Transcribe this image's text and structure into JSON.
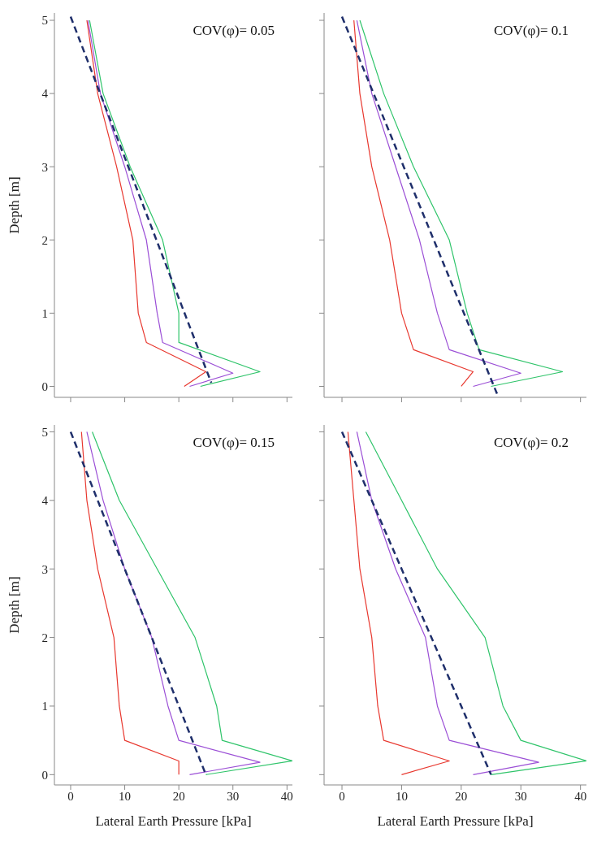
{
  "chart_data": [
    {
      "type": "line",
      "ylabel": "Depth [m]",
      "annotations": [
        "COV(φ)= 0.05"
      ],
      "xlim": [
        -3,
        41
      ],
      "ylim": [
        -0.15,
        5.1
      ],
      "xticks": [
        0,
        10,
        20,
        30,
        40
      ],
      "yticks": [
        0,
        1,
        2,
        3,
        4,
        5
      ],
      "tick_labels": "y",
      "marker": "none",
      "series": [
        {
          "color": "#e8382f",
          "x": [
            3,
            5,
            8.5,
            11.5,
            12.5,
            14,
            25,
            21
          ],
          "values": [
            5,
            4,
            3,
            2,
            1,
            0.6,
            0.2,
            0
          ]
        },
        {
          "color": "#2fc46a",
          "x": [
            3.5,
            6,
            11,
            17,
            20,
            20,
            35,
            24
          ],
          "values": [
            5,
            4,
            3,
            2,
            1,
            0.6,
            0.2,
            0
          ]
        },
        {
          "color": "#9b4fd6",
          "x": [
            3.2,
            5.5,
            10,
            14,
            16,
            17,
            30,
            22
          ],
          "values": [
            5,
            4,
            3,
            2,
            1,
            0.6,
            0.18,
            0
          ]
        },
        {
          "color": "#1f2f6b",
          "line_style": "dashed",
          "x": [
            0,
            26
          ],
          "values": [
            5.05,
            0.05
          ]
        }
      ]
    },
    {
      "type": "line",
      "annotations": [
        "COV(φ)= 0.1"
      ],
      "xlim": [
        -3,
        41
      ],
      "ylim": [
        -0.15,
        5.1
      ],
      "xticks": [
        0,
        10,
        20,
        30,
        40
      ],
      "yticks": [
        0,
        1,
        2,
        3,
        4,
        5
      ],
      "tick_labels": false,
      "marker": "none",
      "series": [
        {
          "color": "#e8382f",
          "x": [
            2,
            3,
            5,
            8,
            10,
            12,
            22,
            20
          ],
          "values": [
            5,
            4,
            3,
            2,
            1,
            0.5,
            0.2,
            0
          ]
        },
        {
          "color": "#2fc46a",
          "x": [
            3,
            7,
            12,
            18,
            21,
            23,
            37,
            25
          ],
          "values": [
            5,
            4,
            3,
            2,
            1,
            0.5,
            0.2,
            0
          ]
        },
        {
          "color": "#9b4fd6",
          "x": [
            2.5,
            5,
            9,
            13,
            16,
            18,
            30,
            22
          ],
          "values": [
            5,
            4,
            3,
            2,
            1,
            0.5,
            0.18,
            0
          ]
        },
        {
          "color": "#1f2f6b",
          "line_style": "dashed",
          "x": [
            0,
            26
          ],
          "values": [
            5.05,
            -0.1
          ]
        }
      ]
    },
    {
      "type": "line",
      "ylabel": "Depth [m]",
      "xlabel": "Lateral Earth Pressure [kPa]",
      "annotations": [
        "COV(φ)= 0.15"
      ],
      "xlim": [
        -3,
        41
      ],
      "ylim": [
        -0.15,
        5.1
      ],
      "xticks": [
        0,
        10,
        20,
        30,
        40
      ],
      "yticks": [
        0,
        1,
        2,
        3,
        4,
        5
      ],
      "marker": "none",
      "series": [
        {
          "color": "#e8382f",
          "x": [
            2,
            3,
            5,
            8,
            9,
            10,
            20,
            20
          ],
          "values": [
            5,
            4,
            3,
            2,
            1,
            0.5,
            0.2,
            0
          ]
        },
        {
          "color": "#2fc46a",
          "x": [
            4,
            9,
            16,
            23,
            27,
            28,
            41,
            25
          ],
          "values": [
            5,
            4,
            3,
            2,
            1,
            0.5,
            0.2,
            0
          ]
        },
        {
          "color": "#9b4fd6",
          "x": [
            3,
            6,
            10,
            15,
            18,
            20,
            35,
            22
          ],
          "values": [
            5,
            4,
            3,
            2,
            1,
            0.5,
            0.18,
            0
          ]
        },
        {
          "color": "#1f2f6b",
          "line_style": "dashed",
          "x": [
            0,
            25
          ],
          "values": [
            5,
            0
          ]
        }
      ]
    },
    {
      "type": "line",
      "xlabel": "Lateral Earth Pressure [kPa]",
      "annotations": [
        "COV(φ)= 0.2"
      ],
      "xlim": [
        -3,
        41
      ],
      "ylim": [
        -0.15,
        5.1
      ],
      "xticks": [
        0,
        10,
        20,
        30,
        40
      ],
      "yticks": [
        0,
        1,
        2,
        3,
        4,
        5
      ],
      "tick_labels": "x",
      "marker": "none",
      "series": [
        {
          "color": "#e8382f",
          "x": [
            1,
            2,
            3,
            5,
            6,
            7,
            18,
            10
          ],
          "values": [
            5,
            4,
            3,
            2,
            1,
            0.5,
            0.2,
            0
          ]
        },
        {
          "color": "#2fc46a",
          "x": [
            4,
            10,
            16,
            24,
            27,
            30,
            41,
            25
          ],
          "values": [
            5,
            4,
            3,
            2,
            1,
            0.5,
            0.2,
            0
          ]
        },
        {
          "color": "#9b4fd6",
          "x": [
            2.5,
            5,
            9,
            14,
            16,
            18,
            33,
            22
          ],
          "values": [
            5,
            4,
            3,
            2,
            1,
            0.5,
            0.18,
            0
          ]
        },
        {
          "color": "#1f2f6b",
          "line_style": "dashed",
          "x": [
            0,
            25
          ],
          "values": [
            5,
            0
          ]
        }
      ]
    }
  ]
}
